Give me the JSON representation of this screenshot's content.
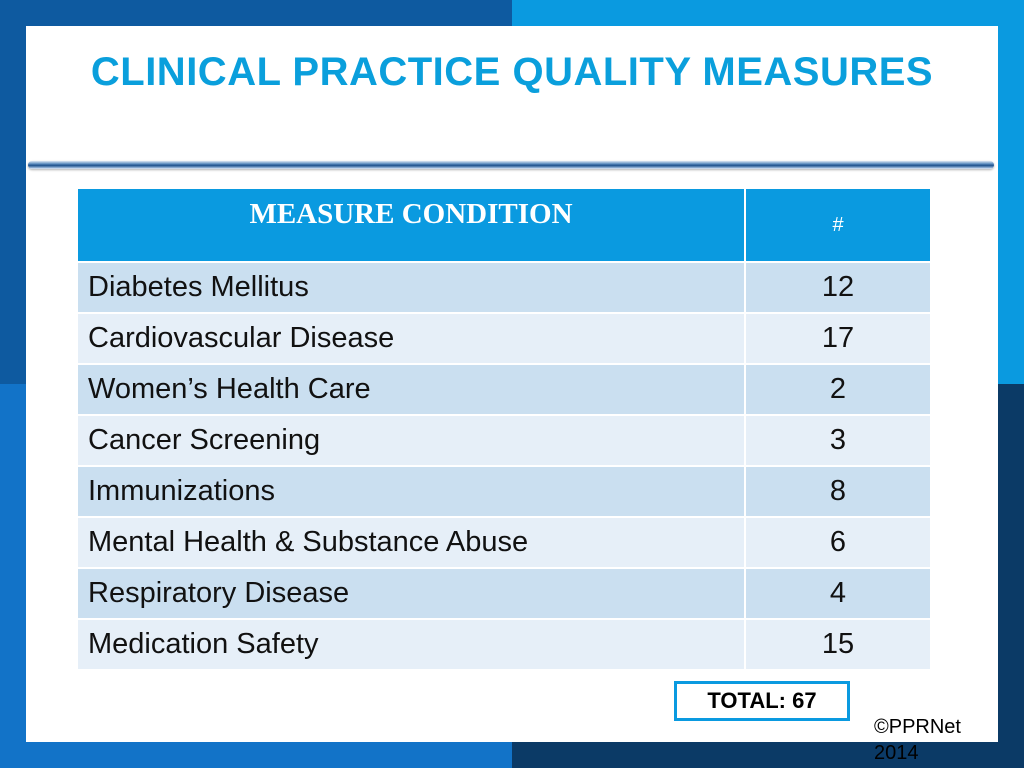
{
  "slide": {
    "title": "CLINICAL PRACTICE QUALITY MEASURES",
    "colors": {
      "accent": "#0a9ae0",
      "title": "#0a9fdc",
      "row_dark": "#cadff0",
      "row_light": "#e6eff8"
    }
  },
  "table": {
    "headers": {
      "condition": "MEASURE CONDITION",
      "count": "#"
    },
    "rows": [
      {
        "condition": "Diabetes Mellitus",
        "count": "12"
      },
      {
        "condition": "Cardiovascular Disease",
        "count": "17"
      },
      {
        "condition": "Women’s Health Care",
        "count": "2"
      },
      {
        "condition": "Cancer Screening",
        "count": "3"
      },
      {
        "condition": "Immunizations",
        "count": "8"
      },
      {
        "condition": "Mental Health & Substance Abuse",
        "count": "6"
      },
      {
        "condition": "Respiratory Disease",
        "count": "4"
      },
      {
        "condition": "Medication Safety",
        "count": "15"
      }
    ]
  },
  "total": {
    "label": "TOTAL: 67"
  },
  "footer": {
    "copyright": "©PPRNet 2014"
  }
}
